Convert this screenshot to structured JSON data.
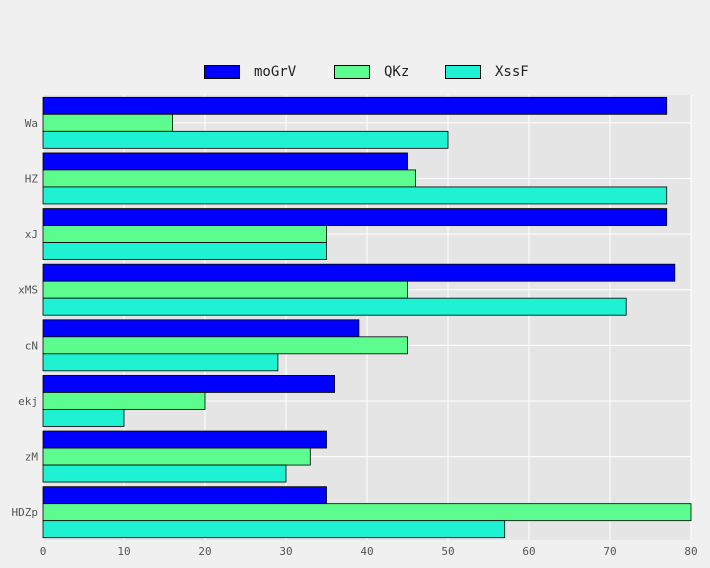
{
  "chart_data": {
    "type": "bar",
    "orientation": "horizontal",
    "categories": [
      "Wa",
      "HZ",
      "xJ",
      "xMS",
      "cN",
      "ekj",
      "zM",
      "HDZp"
    ],
    "series": [
      {
        "name": "moGrV",
        "color": "#0000ff",
        "values": [
          77,
          45,
          77,
          78,
          39,
          36,
          35,
          35
        ]
      },
      {
        "name": "QKz",
        "color": "#5dfc8e",
        "values": [
          16,
          46,
          35,
          45,
          45,
          20,
          33,
          80
        ]
      },
      {
        "name": "XssF",
        "color": "#1ff2d2",
        "values": [
          50,
          77,
          35,
          72,
          29,
          10,
          30,
          57
        ]
      }
    ],
    "xlim": [
      0,
      80
    ],
    "xticks": [
      0,
      10,
      20,
      30,
      40,
      50,
      60,
      70,
      80
    ],
    "grid": true,
    "legend_position": "top-center",
    "title": "",
    "xlabel": "",
    "ylabel": ""
  }
}
